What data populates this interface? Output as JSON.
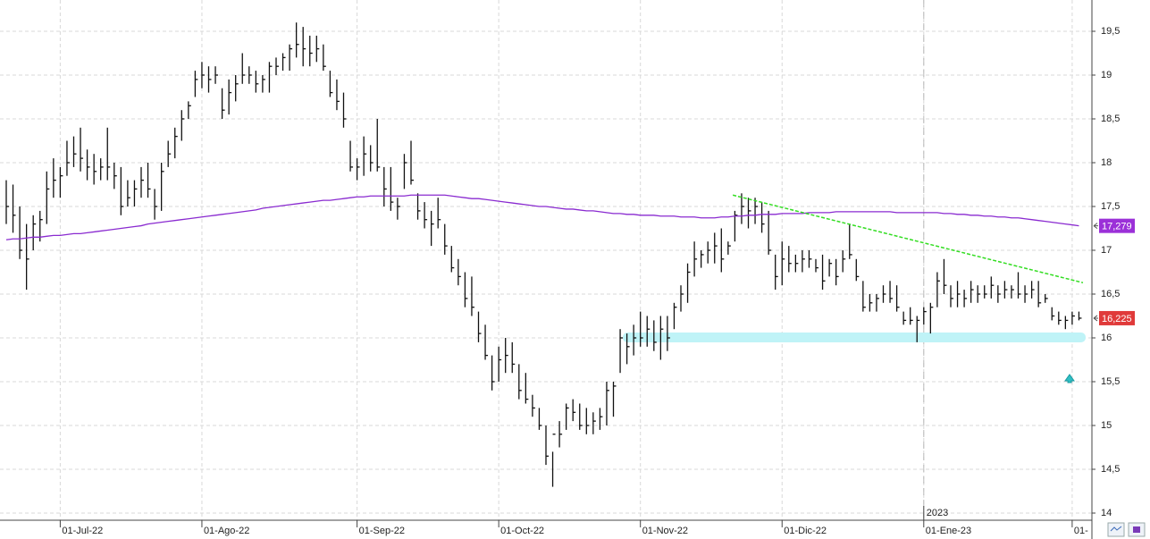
{
  "chart_data": {
    "type": "ohlc",
    "categories": [
      null,
      null,
      null,
      null,
      null,
      null,
      null,
      null,
      "01-Jul-22",
      null,
      null,
      null,
      null,
      null,
      null,
      null,
      null,
      null,
      null,
      null,
      null,
      null,
      null,
      null,
      null,
      null,
      null,
      null,
      null,
      "01-Ago-22",
      null,
      null,
      null,
      null,
      null,
      null,
      null,
      null,
      null,
      null,
      null,
      null,
      null,
      null,
      null,
      null,
      null,
      null,
      null,
      null,
      null,
      null,
      "01-Sep-22",
      null,
      null,
      null,
      null,
      null,
      null,
      null,
      null,
      null,
      null,
      null,
      null,
      null,
      null,
      null,
      null,
      null,
      null,
      null,
      null,
      "01-Oct-22",
      null,
      null,
      null,
      null,
      null,
      null,
      null,
      null,
      null,
      null,
      null,
      null,
      null,
      null,
      null,
      null,
      null,
      null,
      null,
      null,
      "01-Nov-22",
      null,
      null,
      null,
      null,
      null,
      null,
      null,
      null,
      null,
      null,
      null,
      null,
      null,
      null,
      null,
      null,
      null,
      null,
      null,
      null,
      "01-Dic-22",
      null,
      null,
      null,
      null,
      null,
      null,
      null,
      null,
      null,
      null,
      null,
      null,
      null,
      null,
      null,
      null,
      null,
      null,
      null,
      null,
      "01-Ene-23",
      null,
      null,
      null,
      null,
      null,
      null,
      null,
      null,
      null,
      null,
      null,
      null,
      null,
      null,
      null,
      null,
      null,
      null,
      null,
      null,
      null,
      "01-",
      null
    ],
    "ohlc": {
      "color": "#111111",
      "high": [
        17.8,
        17.75,
        17.5,
        17.3,
        17.4,
        17.45,
        17.9,
        18.05,
        17.95,
        18.25,
        18.3,
        18.4,
        18.15,
        18.1,
        18.05,
        18.4,
        18.0,
        17.95,
        17.8,
        17.8,
        17.95,
        18.0,
        17.7,
        18.0,
        18.25,
        18.4,
        18.6,
        18.7,
        19.05,
        19.15,
        19.1,
        19.1,
        18.85,
        18.95,
        19.0,
        19.25,
        19.1,
        19.05,
        19.0,
        19.15,
        19.2,
        19.25,
        19.35,
        19.6,
        19.55,
        19.45,
        19.45,
        19.35,
        19.05,
        18.95,
        18.8,
        18.25,
        18.05,
        18.3,
        18.2,
        18.5,
        17.95,
        17.95,
        17.6,
        18.1,
        18.25,
        17.65,
        17.55,
        17.45,
        17.6,
        17.3,
        17.05,
        16.9,
        16.75,
        16.7,
        16.3,
        16.15,
        15.8,
        15.9,
        16.0,
        15.95,
        15.7,
        15.6,
        15.35,
        15.2,
        15.0,
        14.7,
        15.05,
        15.25,
        15.3,
        15.25,
        15.2,
        15.15,
        15.2,
        15.5,
        15.5,
        16.1,
        16.05,
        16.15,
        16.3,
        16.25,
        16.2,
        16.25,
        16.25,
        16.4,
        16.6,
        16.85,
        17.1,
        17.0,
        17.1,
        17.2,
        17.25,
        17.1,
        17.45,
        17.65,
        17.6,
        17.6,
        17.55,
        17.45,
        16.95,
        17.1,
        17.05,
        16.95,
        17.0,
        17.0,
        16.9,
        16.95,
        16.9,
        16.9,
        17.0,
        17.3,
        16.9,
        16.65,
        16.5,
        16.5,
        16.6,
        16.65,
        16.6,
        16.3,
        16.35,
        16.25,
        16.35,
        16.4,
        16.75,
        16.9,
        16.6,
        16.65,
        16.55,
        16.65,
        16.6,
        16.6,
        16.7,
        16.6,
        16.65,
        16.6,
        16.75,
        16.6,
        16.65,
        16.65,
        16.5,
        16.35,
        16.3,
        16.25,
        16.3,
        16.3
      ],
      "low": [
        17.3,
        17.2,
        16.9,
        16.55,
        17.0,
        17.1,
        17.3,
        17.6,
        17.6,
        17.85,
        17.95,
        17.9,
        17.8,
        17.75,
        17.8,
        17.8,
        17.7,
        17.4,
        17.5,
        17.5,
        17.6,
        17.6,
        17.35,
        17.45,
        17.95,
        18.05,
        18.25,
        18.5,
        18.75,
        18.85,
        18.8,
        18.9,
        18.5,
        18.55,
        18.7,
        18.9,
        18.9,
        18.8,
        18.8,
        18.8,
        19.0,
        19.05,
        19.05,
        19.2,
        19.1,
        19.1,
        19.15,
        19.05,
        18.75,
        18.6,
        18.4,
        17.9,
        17.8,
        17.85,
        17.9,
        17.9,
        17.5,
        17.45,
        17.35,
        17.7,
        17.75,
        17.35,
        17.25,
        17.05,
        17.25,
        16.95,
        16.75,
        16.6,
        16.35,
        16.25,
        15.95,
        15.75,
        15.4,
        15.5,
        15.6,
        15.6,
        15.3,
        15.25,
        15.1,
        14.95,
        14.55,
        14.3,
        14.75,
        14.95,
        15.05,
        14.95,
        14.9,
        14.9,
        14.95,
        15.0,
        15.1,
        15.6,
        15.7,
        15.8,
        15.9,
        15.9,
        15.85,
        15.75,
        15.85,
        16.1,
        16.3,
        16.4,
        16.7,
        16.8,
        16.85,
        16.85,
        16.75,
        16.95,
        17.1,
        17.3,
        17.25,
        17.3,
        17.2,
        16.95,
        16.55,
        16.6,
        16.75,
        16.75,
        16.75,
        16.8,
        16.75,
        16.55,
        16.7,
        16.6,
        16.75,
        16.9,
        16.65,
        16.3,
        16.3,
        16.3,
        16.4,
        16.4,
        16.3,
        16.15,
        16.15,
        15.95,
        16.15,
        16.05,
        16.35,
        16.5,
        16.35,
        16.35,
        16.35,
        16.4,
        16.4,
        16.45,
        16.45,
        16.4,
        16.45,
        16.45,
        16.45,
        16.4,
        16.45,
        16.35,
        16.4,
        16.2,
        16.15,
        16.1,
        16.15,
        16.2
      ],
      "close": [
        17.5,
        17.4,
        17.0,
        16.9,
        17.3,
        17.35,
        17.7,
        17.8,
        17.85,
        18.0,
        18.1,
        18.05,
        17.95,
        17.9,
        17.95,
        17.95,
        17.85,
        17.5,
        17.6,
        17.7,
        17.8,
        17.7,
        17.5,
        17.9,
        18.1,
        18.3,
        18.5,
        18.65,
        18.95,
        19.0,
        18.95,
        19.0,
        18.6,
        18.8,
        18.9,
        19.0,
        19.0,
        18.9,
        18.95,
        19.1,
        19.1,
        19.2,
        19.3,
        19.35,
        19.3,
        19.25,
        19.3,
        19.1,
        18.8,
        18.7,
        18.5,
        17.95,
        17.95,
        18.1,
        18.0,
        17.95,
        17.7,
        17.55,
        17.5,
        18.0,
        17.8,
        17.45,
        17.35,
        17.3,
        17.35,
        17.05,
        16.8,
        16.7,
        16.45,
        16.35,
        16.05,
        15.8,
        15.5,
        15.75,
        15.8,
        15.7,
        15.4,
        15.3,
        15.2,
        15.0,
        14.65,
        14.9,
        14.9,
        15.2,
        15.15,
        15.0,
        15.0,
        15.05,
        15.1,
        15.4,
        15.45,
        16.0,
        15.9,
        16.0,
        16.0,
        16.1,
        15.95,
        16.1,
        16.0,
        16.35,
        16.5,
        16.75,
        16.9,
        16.95,
        17.0,
        17.05,
        16.9,
        17.05,
        17.4,
        17.5,
        17.45,
        17.5,
        17.3,
        17.0,
        16.7,
        16.9,
        16.85,
        16.85,
        16.9,
        16.9,
        16.8,
        16.65,
        16.85,
        16.7,
        16.9,
        16.95,
        16.7,
        16.35,
        16.4,
        16.45,
        16.5,
        16.45,
        16.35,
        16.2,
        16.2,
        16.2,
        16.3,
        16.35,
        16.65,
        16.6,
        16.45,
        16.5,
        16.45,
        16.55,
        16.5,
        16.5,
        16.6,
        16.5,
        16.55,
        16.55,
        16.5,
        16.5,
        16.55,
        16.4,
        16.45,
        16.25,
        16.2,
        16.2,
        16.25,
        16.225
      ]
    },
    "ma": {
      "color": "#8a2bd0",
      "values": [
        17.12,
        17.13,
        17.13,
        17.14,
        17.15,
        17.15,
        17.16,
        17.17,
        17.17,
        17.18,
        17.19,
        17.19,
        17.2,
        17.21,
        17.22,
        17.23,
        17.24,
        17.25,
        17.26,
        17.27,
        17.28,
        17.3,
        17.31,
        17.32,
        17.33,
        17.34,
        17.35,
        17.36,
        17.37,
        17.38,
        17.39,
        17.4,
        17.41,
        17.42,
        17.43,
        17.44,
        17.45,
        17.46,
        17.48,
        17.49,
        17.5,
        17.51,
        17.52,
        17.53,
        17.54,
        17.55,
        17.56,
        17.57,
        17.57,
        17.58,
        17.59,
        17.6,
        17.61,
        17.61,
        17.62,
        17.62,
        17.62,
        17.62,
        17.62,
        17.62,
        17.63,
        17.63,
        17.63,
        17.63,
        17.63,
        17.63,
        17.62,
        17.61,
        17.6,
        17.59,
        17.59,
        17.58,
        17.57,
        17.56,
        17.55,
        17.54,
        17.53,
        17.52,
        17.51,
        17.5,
        17.5,
        17.49,
        17.48,
        17.47,
        17.47,
        17.46,
        17.45,
        17.45,
        17.44,
        17.43,
        17.42,
        17.42,
        17.41,
        17.41,
        17.4,
        17.4,
        17.4,
        17.39,
        17.39,
        17.39,
        17.38,
        17.38,
        17.38,
        17.37,
        17.37,
        17.37,
        17.38,
        17.38,
        17.39,
        17.39,
        17.4,
        17.4,
        17.41,
        17.41,
        17.41,
        17.42,
        17.42,
        17.42,
        17.42,
        17.43,
        17.43,
        17.43,
        17.43,
        17.44,
        17.44,
        17.44,
        17.44,
        17.44,
        17.44,
        17.44,
        17.44,
        17.44,
        17.43,
        17.43,
        17.43,
        17.43,
        17.43,
        17.43,
        17.43,
        17.42,
        17.42,
        17.41,
        17.41,
        17.4,
        17.4,
        17.39,
        17.39,
        17.38,
        17.38,
        17.37,
        17.37,
        17.36,
        17.35,
        17.34,
        17.33,
        17.32,
        17.31,
        17.3,
        17.29,
        17.279
      ]
    },
    "trendline": {
      "color": "#33dd22",
      "x": [
        107.7,
        159.6
      ],
      "y": [
        17.63,
        16.63
      ]
    },
    "support": {
      "color": "#bff3f7",
      "value": 16.0
    },
    "year_marker": {
      "label": "2023",
      "at": 136
    },
    "last_labels": [
      {
        "value": 17.279,
        "label": "17,279",
        "color": "#9b30d8"
      },
      {
        "value": 16.225,
        "label": "16,225",
        "color": "#e03a3a"
      }
    ],
    "ylim": [
      14,
      19.65
    ],
    "yticks": [
      14,
      {
        "value": 14.5,
        "label": "14,5"
      },
      15,
      {
        "value": 15.5,
        "label": "15,5"
      },
      16,
      {
        "value": 16.5,
        "label": "16,5"
      },
      17,
      {
        "value": 17.5,
        "label": "17,5"
      },
      18,
      {
        "value": 18.5,
        "label": "18,5"
      },
      19,
      {
        "value": 19.5,
        "label": "19,5"
      }
    ],
    "grid": true
  }
}
